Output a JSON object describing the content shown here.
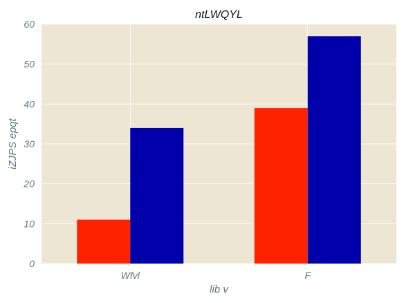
{
  "chart_data": {
    "type": "bar",
    "title": "ntLWQYL",
    "xlabel": "lib v",
    "ylabel": "iZJPS epqt",
    "categories": [
      "Wfvl",
      "F"
    ],
    "series": [
      {
        "values": [
          11,
          39
        ],
        "color": "#ff2200"
      },
      {
        "values": [
          34,
          57
        ],
        "color": "#0000aa"
      }
    ],
    "ylim": [
      0,
      60
    ],
    "yticks": [
      0,
      10,
      20,
      30,
      40,
      50,
      60
    ],
    "grid": true,
    "plot_background": "#ede6d3",
    "grid_color": "#ffffff"
  }
}
